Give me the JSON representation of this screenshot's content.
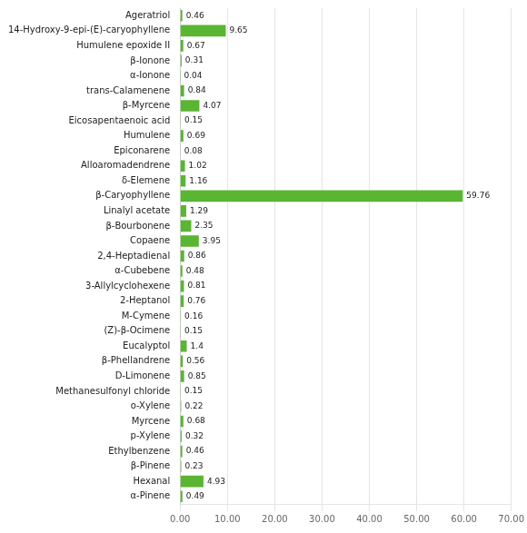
{
  "chart_data": {
    "type": "bar",
    "orientation": "horizontal",
    "categories": [
      "Ageratriol",
      "14-Hydroxy-9-epi-(E)-caryophyllene",
      "Humulene epoxide II",
      "β-Ionone",
      "α-Ionone",
      "trans-Calamenene",
      "β-Myrcene",
      "Eicosapentaenoic acid",
      "Humulene",
      "Epiconarene",
      "Alloaromadendrene",
      "δ-Elemene",
      "β-Caryophyllene",
      "Linalyl acetate",
      "β-Bourbonene",
      "Copaene",
      "2,4-Heptadienal",
      "α-Cubebene",
      "3-Allylcyclohexene",
      "2-Heptanol",
      "M-Cymene",
      "(Z)-β-Ocimene",
      "Eucalyptol",
      "β-Phellandrene",
      "D-Limonene",
      "Methanesulfonyl chloride",
      "o-Xylene",
      "Myrcene",
      "p-Xylene",
      "Ethylbenzene",
      "β-Pinene",
      "Hexanal",
      "α-Pinene"
    ],
    "values": [
      0.46,
      9.65,
      0.67,
      0.31,
      0.04,
      0.84,
      4.07,
      0.15,
      0.69,
      0.08,
      1.02,
      1.16,
      59.76,
      1.29,
      2.35,
      3.95,
      0.86,
      0.48,
      0.81,
      0.76,
      0.16,
      0.15,
      1.4,
      0.56,
      0.85,
      0.15,
      0.22,
      0.68,
      0.32,
      0.46,
      0.23,
      4.93,
      0.49
    ],
    "color": "#5ab533",
    "xlim": [
      0,
      70
    ],
    "xticks": [
      {
        "value": 0,
        "label": "0.00"
      },
      {
        "value": 10,
        "label": "10.00"
      },
      {
        "value": 20,
        "label": "20.00"
      },
      {
        "value": 30,
        "label": "30.00"
      },
      {
        "value": 40,
        "label": "40.00"
      },
      {
        "value": 50,
        "label": "50.00"
      },
      {
        "value": 60,
        "label": "60.00"
      },
      {
        "value": 70,
        "label": "70.00"
      }
    ],
    "grid": true,
    "data_labels": true
  }
}
